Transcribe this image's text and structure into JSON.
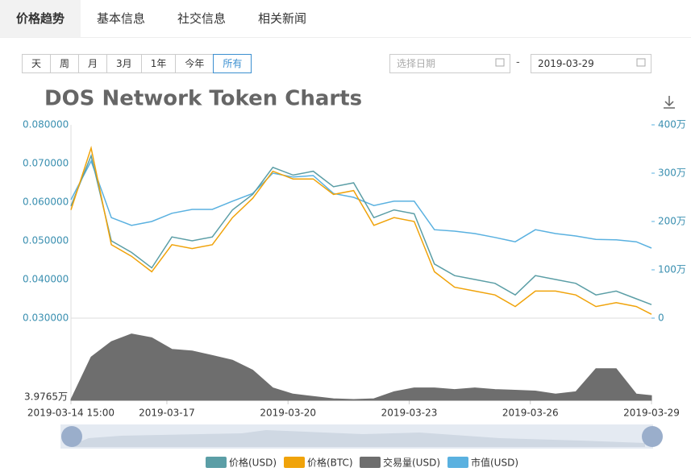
{
  "tabs": [
    "价格趋势",
    "基本信息",
    "社交信息",
    "相关新闻"
  ],
  "active_tab": 0,
  "range_buttons": [
    "天",
    "周",
    "月",
    "3月",
    "1年",
    "今年",
    "所有"
  ],
  "active_range": 6,
  "date_from_placeholder": "选择日期",
  "date_separator": "-",
  "date_to": "2019-03-29",
  "chart_data": {
    "type": "line",
    "title": "DOS Network Token Charts",
    "x": [
      "2019-03-14 15:00",
      "2019-03-15 03:00",
      "2019-03-15 15:00",
      "2019-03-16 03:00",
      "2019-03-16 15:00",
      "2019-03-17 03:00",
      "2019-03-17 15:00",
      "2019-03-18 03:00",
      "2019-03-18 15:00",
      "2019-03-19 03:00",
      "2019-03-19 15:00",
      "2019-03-20 03:00",
      "2019-03-20 15:00",
      "2019-03-21 03:00",
      "2019-03-21 15:00",
      "2019-03-22 03:00",
      "2019-03-22 15:00",
      "2019-03-23 03:00",
      "2019-03-23 15:00",
      "2019-03-24 03:00",
      "2019-03-24 15:00",
      "2019-03-25 03:00",
      "2019-03-25 15:00",
      "2019-03-26 03:00",
      "2019-03-26 15:00",
      "2019-03-27 03:00",
      "2019-03-27 15:00",
      "2019-03-28 03:00",
      "2019-03-28 15:00",
      "2019-03-29 00:00"
    ],
    "xlim": [
      "2019-03-14 15:00",
      "2019-03-29 00:00"
    ],
    "xticks": [
      "2019-03-14 15:00",
      "2019-03-17",
      "2019-03-20",
      "2019-03-23",
      "2019-03-26",
      "2019-03-29"
    ],
    "series": [
      {
        "name": "价格(USD)",
        "color": "#5b9ea6",
        "axis": "y",
        "values": [
          0.059,
          0.072,
          0.05,
          0.047,
          0.043,
          0.051,
          0.05,
          0.051,
          0.058,
          0.062,
          0.069,
          0.067,
          0.068,
          0.064,
          0.065,
          0.056,
          0.058,
          0.057,
          0.044,
          0.041,
          0.04,
          0.039,
          0.036,
          0.041,
          0.04,
          0.039,
          0.036,
          0.037,
          0.035,
          0.0335
        ]
      },
      {
        "name": "价格(BTC)",
        "color": "#f0a30a",
        "axis": "y",
        "values": [
          0.058,
          0.074,
          0.049,
          0.046,
          0.042,
          0.049,
          0.048,
          0.049,
          0.056,
          0.061,
          0.068,
          0.066,
          0.066,
          0.062,
          0.063,
          0.054,
          0.056,
          0.055,
          0.042,
          0.038,
          0.037,
          0.036,
          0.033,
          0.037,
          0.037,
          0.036,
          0.033,
          0.034,
          0.033,
          0.031
        ]
      },
      {
        "name": "交易量(USD)",
        "color": "#6e6e6e",
        "axis": "y3",
        "values": [
          50000,
          600000,
          800000,
          900000,
          850000,
          700000,
          680000,
          620000,
          560000,
          430000,
          200000,
          120000,
          90000,
          60000,
          50000,
          60000,
          150000,
          200000,
          200000,
          180000,
          200000,
          180000,
          170000,
          160000,
          120000,
          150000,
          450000,
          450000,
          120000,
          100000
        ]
      },
      {
        "name": "市值(USD)",
        "color": "#5ab1e0",
        "axis": "y2",
        "values": [
          2450000,
          3250000,
          2080000,
          1920000,
          2000000,
          2170000,
          2250000,
          2250000,
          2420000,
          2580000,
          3000000,
          2920000,
          2950000,
          2580000,
          2500000,
          2330000,
          2420000,
          2420000,
          1830000,
          1800000,
          1750000,
          1670000,
          1580000,
          1830000,
          1750000,
          1700000,
          1630000,
          1620000,
          1580000,
          1450000
        ]
      }
    ],
    "ylim": [
      0.03,
      0.08
    ],
    "yticks": [
      {
        "value": 0.03,
        "label": "0.030000"
      },
      {
        "value": 0.04,
        "label": "0.040000"
      },
      {
        "value": 0.05,
        "label": "0.050000"
      },
      {
        "value": 0.06,
        "label": "0.060000"
      },
      {
        "value": 0.07,
        "label": "0.070000"
      },
      {
        "value": 0.08,
        "label": "0.080000"
      }
    ],
    "y2lim": [
      0,
      4000000
    ],
    "y2ticks": [
      0,
      {
        "value": 1000000,
        "label": "100万"
      },
      {
        "value": 2000000,
        "label": "200万"
      },
      {
        "value": 3000000,
        "label": "300万"
      },
      {
        "value": 4000000,
        "label": "400万"
      }
    ],
    "y3lim": [
      39765,
      1000000
    ],
    "y3ticks": [
      {
        "value": 39765,
        "label": "3.9765万"
      }
    ]
  }
}
